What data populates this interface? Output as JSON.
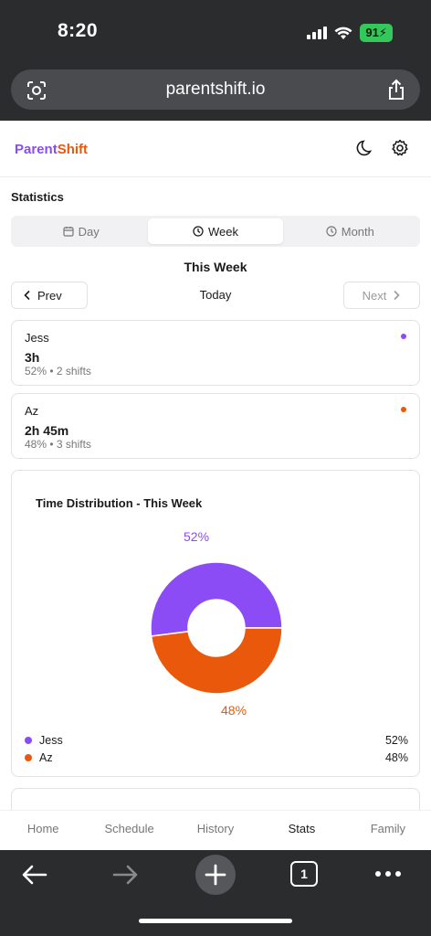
{
  "status_bar": {
    "time": "8:20",
    "battery": "91"
  },
  "browser": {
    "url": "parentshift.io"
  },
  "brand": {
    "part1": "Parent",
    "part2": "Shift"
  },
  "page": {
    "title": "Statistics",
    "tabs": [
      {
        "label": "Day",
        "icon": "calendar-icon",
        "active": false
      },
      {
        "label": "Week",
        "icon": "clock-icon",
        "active": true
      },
      {
        "label": "Month",
        "icon": "clock-icon",
        "active": false
      }
    ],
    "period_title": "This Week",
    "nav": {
      "prev": "Prev",
      "today": "Today",
      "next": "Next"
    }
  },
  "people": [
    {
      "name": "Jess",
      "hours": "3h",
      "meta": "52% • 2 shifts",
      "color": "#8b4cf6"
    },
    {
      "name": "Az",
      "hours": "2h 45m",
      "meta": "48% • 3 shifts",
      "color": "#ea580c"
    }
  ],
  "distribution": {
    "title": "Time Distribution - This Week",
    "slices": [
      {
        "name": "Jess",
        "pct_label": "52%",
        "value": 52,
        "color": "#8b4cf6"
      },
      {
        "name": "Az",
        "pct_label": "48%",
        "value": 48,
        "color": "#ea580c"
      }
    ]
  },
  "bottom_nav": [
    "Home",
    "Schedule",
    "History",
    "Stats",
    "Family"
  ],
  "bottom_nav_active": "Stats",
  "toolbar": {
    "tab_count": "1"
  }
}
